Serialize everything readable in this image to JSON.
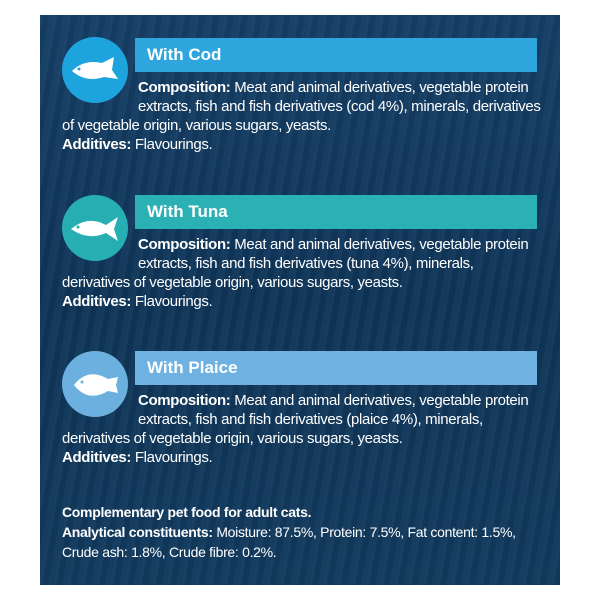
{
  "sections": [
    {
      "title": "With Cod",
      "composition_label": "Composition:",
      "composition_text": "Meat and animal derivatives, vegetable protein extracts, fish and fish derivatives (cod 4%), minerals, derivatives of vegetable origin, various sugars, yeasts.",
      "additives_label": "Additives:",
      "additives_text": "Flavourings."
    },
    {
      "title": "With Tuna",
      "composition_label": "Composition:",
      "composition_text": "Meat and animal derivatives, vegetable protein extracts, fish and fish derivatives (tuna 4%), minerals, derivatives of vegetable origin, various sugars, yeasts.",
      "additives_label": "Additives:",
      "additives_text": "Flavourings."
    },
    {
      "title": "With Plaice",
      "composition_label": "Composition:",
      "composition_text": "Meat and animal derivatives, vegetable protein extracts, fish and fish derivatives (plaice 4%), minerals, derivatives of vegetable origin, various sugars, yeasts.",
      "additives_label": "Additives:",
      "additives_text": "Flavourings."
    }
  ],
  "footer": {
    "line1": "Complementary pet food for adult cats.",
    "analytical_label": "Analytical constituents:",
    "analytical_text": "Moisture: 87.5%, Protein: 7.5%, Fat content: 1.5%, Crude ash: 1.8%, Crude fibre: 0.2%."
  }
}
